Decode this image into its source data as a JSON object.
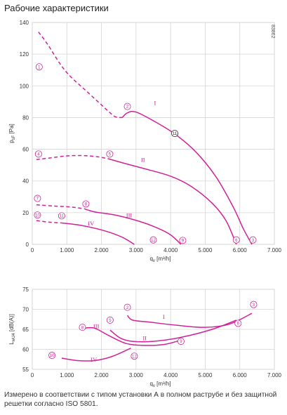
{
  "title": "Рабочие характеристики",
  "footnote": "Измерено в соответствии с типом установки А в полном раструбе и без защитной решетки согласно ISO 5801.",
  "chart_data": [
    {
      "type": "line",
      "code": "83862",
      "ylabel_main": "p",
      "ylabel_sub": "sF",
      "ylabel_unit": "[Pa]",
      "xlabel_main": "q",
      "xlabel_sub": "v",
      "xlabel_unit": "[m³/h]",
      "xlim": [
        0,
        7000
      ],
      "ylim": [
        0,
        140
      ],
      "xticks": [
        0,
        1000,
        2000,
        3000,
        4000,
        5000,
        6000,
        7000
      ],
      "xtick_labels": [
        "0",
        "1.000",
        "2.000",
        "3.000",
        "4.000",
        "5.000",
        "6.000",
        "7.000"
      ],
      "yticks": [
        0,
        20,
        40,
        60,
        80,
        100,
        120,
        140
      ],
      "ytick_labels": [
        "0",
        "20",
        "40",
        "60",
        "80",
        "100",
        "120",
        "140"
      ],
      "grid": true,
      "series": [
        {
          "name": "I",
          "dashed": [
            [
              180,
              134
            ],
            [
              450,
              126
            ],
            [
              800,
              114
            ],
            [
              1100,
              106
            ],
            [
              1500,
              98
            ],
            [
              1900,
              90
            ],
            [
              2200,
              84
            ],
            [
              2400,
              80.5
            ],
            [
              2600,
              80
            ]
          ],
          "solid": [
            [
              2600,
              80
            ],
            [
              2750,
              83
            ],
            [
              3000,
              83.5
            ],
            [
              3500,
              78
            ],
            [
              4100,
              70
            ],
            [
              4700,
              59
            ],
            [
              5300,
              43
            ],
            [
              5800,
              24
            ],
            [
              6100,
              10
            ],
            [
              6350,
              0
            ]
          ]
        },
        {
          "name": "II",
          "dashed": [
            [
              120,
              53.5
            ],
            [
              500,
              54.5
            ],
            [
              1000,
              55.8
            ],
            [
              1500,
              56
            ],
            [
              1900,
              55.2
            ],
            [
              2200,
              54
            ]
          ],
          "solid": [
            [
              2200,
              54
            ],
            [
              2600,
              51.5
            ],
            [
              3200,
              48
            ],
            [
              4000,
              43
            ],
            [
              4600,
              36.5
            ],
            [
              5200,
              26
            ],
            [
              5600,
              15
            ],
            [
              5900,
              0
            ]
          ]
        },
        {
          "name": "III",
          "dashed": [
            [
              120,
              25
            ],
            [
              600,
              24.2
            ],
            [
              1100,
              23.6
            ],
            [
              1500,
              22.5
            ]
          ],
          "solid": [
            [
              1500,
              22.5
            ],
            [
              1800,
              20.5
            ],
            [
              2400,
              18.5
            ],
            [
              3100,
              14.5
            ],
            [
              3600,
              10.5
            ],
            [
              4000,
              6
            ],
            [
              4300,
              0
            ]
          ]
        },
        {
          "name": "IV",
          "dashed": [
            [
              120,
              15
            ],
            [
              500,
              14
            ],
            [
              850,
              13.5
            ]
          ],
          "solid": [
            [
              850,
              13.5
            ],
            [
              1400,
              12
            ],
            [
              2100,
              8.5
            ],
            [
              2600,
              4.5
            ],
            [
              2950,
              0
            ]
          ]
        }
      ],
      "markers": [
        {
          "label": "1",
          "x": 200,
          "y": 112
        },
        {
          "label": "2",
          "x": 2750,
          "y": 87
        },
        {
          "label": "11",
          "x": 4120,
          "y": 70,
          "color": "black"
        },
        {
          "label": "4",
          "x": 180,
          "y": 57
        },
        {
          "label": "5",
          "x": 2240,
          "y": 57
        },
        {
          "label": "7",
          "x": 150,
          "y": 29
        },
        {
          "label": "8",
          "x": 1550,
          "y": 25.5
        },
        {
          "label": "10",
          "x": 150,
          "y": 18.5
        },
        {
          "label": "11",
          "x": 850,
          "y": 18
        },
        {
          "label": "12",
          "x": 3500,
          "y": 2.8
        },
        {
          "label": "9",
          "x": 4350,
          "y": 2.5
        },
        {
          "label": "6",
          "x": 5900,
          "y": 2.8
        },
        {
          "label": "3",
          "x": 6380,
          "y": 2.8
        }
      ],
      "roman_labels": [
        {
          "text": "I",
          "x": 3550,
          "y": 88
        },
        {
          "text": "II",
          "x": 3200,
          "y": 52
        },
        {
          "text": "III",
          "x": 2800,
          "y": 17
        },
        {
          "text": "IV",
          "x": 1700,
          "y": 12
        }
      ]
    },
    {
      "type": "line",
      "ylabel_main": "L",
      "ylabel_sub": "wU4",
      "ylabel_unit": "[dB(A)]",
      "xlabel_main": "q",
      "xlabel_sub": "v",
      "xlabel_unit": "[m³/h]",
      "xlim": [
        0,
        7000
      ],
      "ylim": [
        55,
        75
      ],
      "xticks": [
        0,
        1000,
        2000,
        3000,
        4000,
        5000,
        6000,
        7000
      ],
      "xtick_labels": [
        "0",
        "1.000",
        "2.000",
        "3.000",
        "4.000",
        "5.000",
        "6.000",
        "7.000"
      ],
      "yticks": [
        55,
        60,
        65,
        70,
        75
      ],
      "ytick_labels": [
        "55",
        "60",
        "65",
        "70",
        "75"
      ],
      "grid": true,
      "series": [
        {
          "name": "I",
          "solid": [
            [
              2750,
              68.5
            ],
            [
              2900,
              67.3
            ],
            [
              3400,
              66.8
            ],
            [
              4200,
              66
            ],
            [
              5000,
              65.5
            ],
            [
              5700,
              66.3
            ],
            [
              6350,
              69
            ]
          ]
        },
        {
          "name": "II",
          "solid": [
            [
              2250,
              64.8
            ],
            [
              2550,
              62.8
            ],
            [
              2900,
              62
            ],
            [
              3500,
              62
            ],
            [
              4300,
              63
            ],
            [
              5200,
              65
            ],
            [
              5900,
              67.3
            ]
          ]
        },
        {
          "name": "III",
          "solid": [
            [
              1500,
              65.3
            ],
            [
              1800,
              65.3
            ],
            [
              2200,
              63.5
            ],
            [
              2700,
              61.5
            ],
            [
              3200,
              61
            ],
            [
              3800,
              61.2
            ],
            [
              4300,
              62.3
            ]
          ]
        },
        {
          "name": "IV",
          "solid": [
            [
              850,
              57.8
            ],
            [
              1300,
              57.2
            ],
            [
              1800,
              57.2
            ],
            [
              2300,
              58.2
            ],
            [
              2850,
              60.3
            ]
          ]
        }
      ],
      "markers": [
        {
          "label": "2",
          "x": 2750,
          "y": 70.5
        },
        {
          "label": "3",
          "x": 6400,
          "y": 71.2
        },
        {
          "label": "5",
          "x": 2250,
          "y": 67.3
        },
        {
          "label": "8",
          "x": 1450,
          "y": 65.5
        },
        {
          "label": "6",
          "x": 5950,
          "y": 66.5
        },
        {
          "label": "9",
          "x": 4300,
          "y": 62
        },
        {
          "label": "10",
          "x": 570,
          "y": 58.5
        },
        {
          "label": "12",
          "x": 2950,
          "y": 58.3
        }
      ],
      "roman_labels": [
        {
          "text": "I",
          "x": 3800,
          "y": 67.6
        },
        {
          "text": "II",
          "x": 3250,
          "y": 62.3
        },
        {
          "text": "III",
          "x": 1850,
          "y": 65.3
        },
        {
          "text": "IV",
          "x": 1780,
          "y": 56.9
        }
      ]
    }
  ]
}
